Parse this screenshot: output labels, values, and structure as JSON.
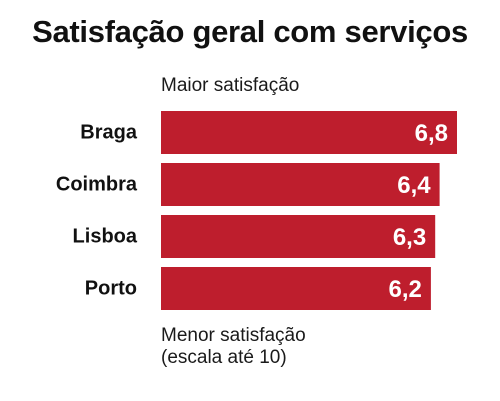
{
  "title": "Satisfação geral com serviços",
  "annotations": {
    "top": "Maior satisfação",
    "bottom_line1": "Menor satisfação",
    "bottom_line2": "(escala até 10)"
  },
  "colors": {
    "bar": "#be1e2d",
    "value_text": "#ffffff"
  },
  "chart_data": {
    "type": "bar",
    "orientation": "horizontal",
    "title": "Satisfação geral com serviços",
    "categories": [
      "Braga",
      "Coimbra",
      "Lisboa",
      "Porto"
    ],
    "values": [
      6.8,
      6.4,
      6.3,
      6.2
    ],
    "value_labels": [
      "6,8",
      "6,4",
      "6,3",
      "6,2"
    ],
    "xlabel": "",
    "ylabel": "",
    "grid": false
  }
}
